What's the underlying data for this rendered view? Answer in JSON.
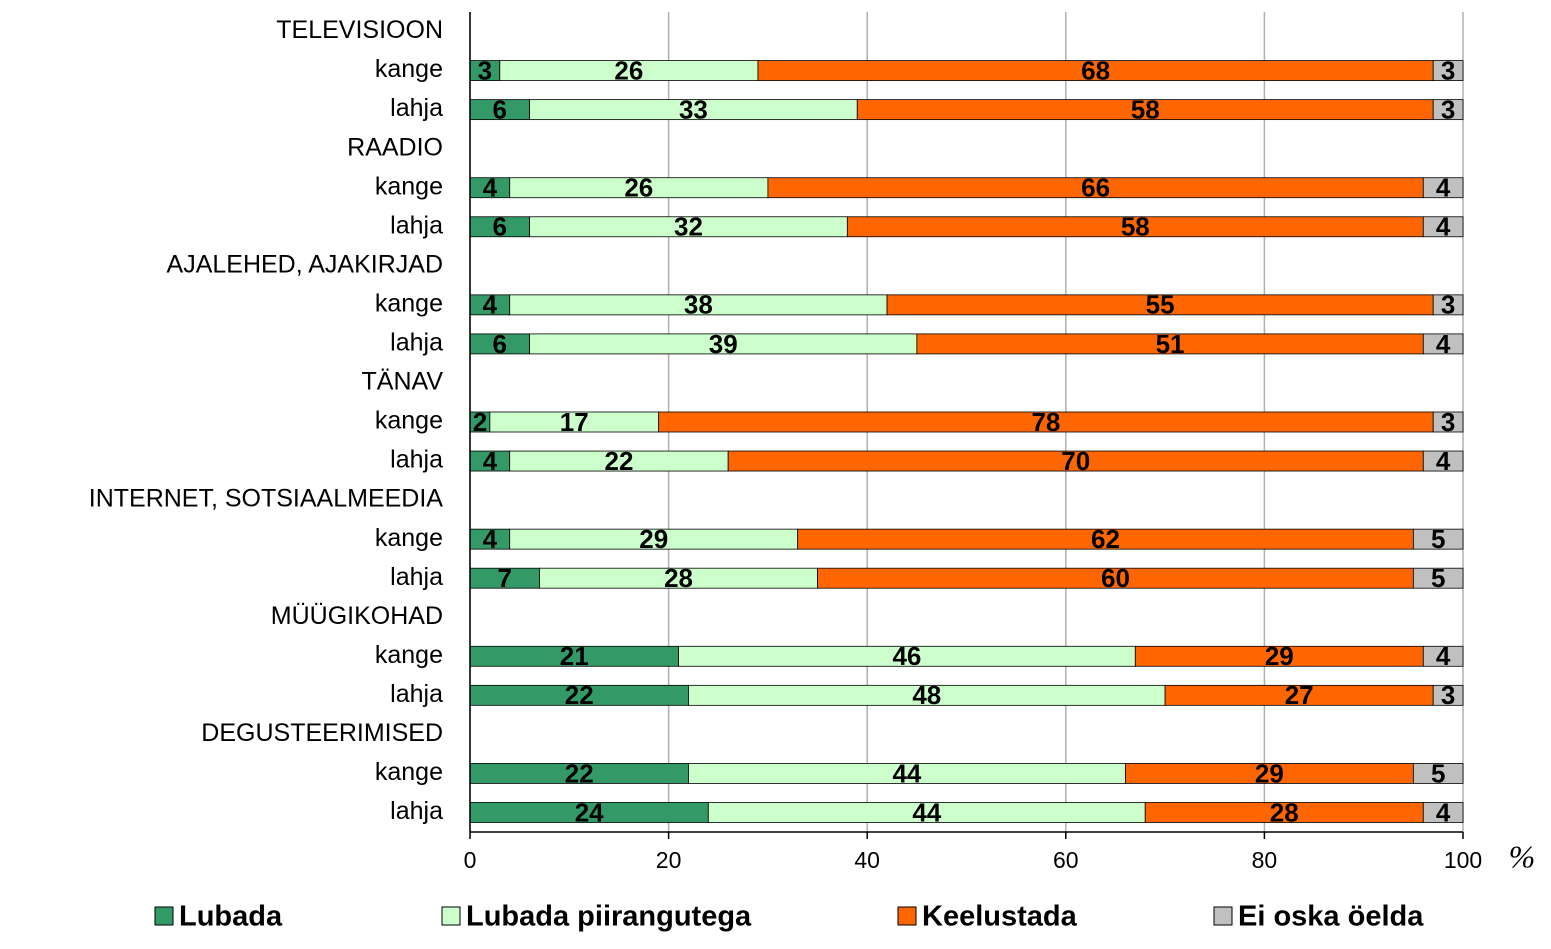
{
  "chart_data": {
    "type": "stacked-bar-horizontal",
    "categories": [
      "TELEVISIOON",
      "kange",
      "lahja",
      "RAADIO",
      "kange",
      "lahja",
      "AJALEHED, AJAKIRJAD",
      "kange",
      "lahja",
      "TÄNAV",
      "kange",
      "lahja",
      "INTERNET, SOTSIAALMEEDIA",
      "kange",
      "lahja",
      "MÜÜGIKOHAD",
      "kange",
      "lahja",
      "DEGUSTEERIMISED",
      "kange",
      "lahja"
    ],
    "series": [
      {
        "name": "Lubada",
        "color": "#339966",
        "values": [
          null,
          3,
          6,
          null,
          4,
          6,
          null,
          4,
          6,
          null,
          2,
          4,
          null,
          4,
          7,
          null,
          21,
          22,
          null,
          22,
          24
        ]
      },
      {
        "name": "Lubada piirangutega",
        "color": "#ccffcc",
        "values": [
          null,
          26,
          33,
          null,
          26,
          32,
          null,
          38,
          39,
          null,
          17,
          22,
          null,
          29,
          28,
          null,
          46,
          48,
          null,
          44,
          44
        ]
      },
      {
        "name": "Keelustada",
        "color": "#ff6600",
        "values": [
          null,
          68,
          58,
          null,
          66,
          58,
          null,
          55,
          51,
          null,
          78,
          70,
          null,
          62,
          60,
          null,
          29,
          27,
          null,
          29,
          28
        ]
      },
      {
        "name": "Ei oska öelda",
        "color": "#c0c0c0",
        "values": [
          null,
          3,
          3,
          null,
          4,
          4,
          null,
          3,
          4,
          null,
          3,
          4,
          null,
          5,
          5,
          null,
          4,
          3,
          null,
          5,
          4
        ]
      }
    ],
    "x_label": "%",
    "xlim": [
      0,
      100
    ],
    "xticks": [
      0,
      20,
      40,
      60,
      80,
      100
    ],
    "grid": true,
    "legend": "bottom"
  }
}
